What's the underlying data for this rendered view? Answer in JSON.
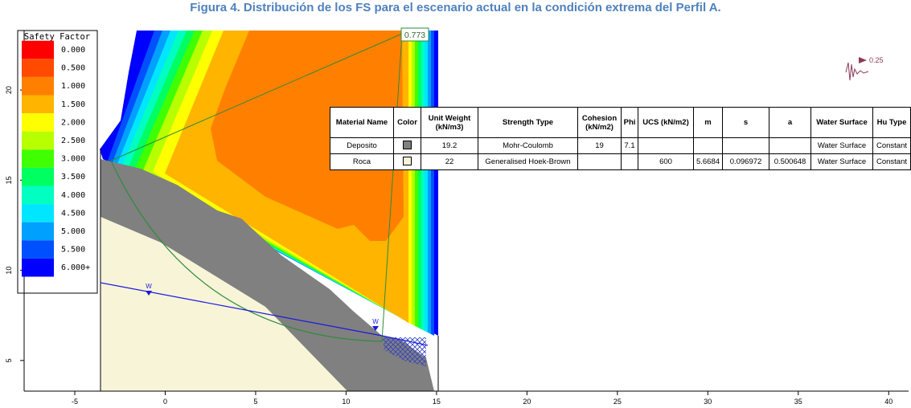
{
  "caption": "Figura 4. Distribución de los FS para el escenario actual en la condición extrema del Perfil A.",
  "legend": {
    "title": "Safety Factor",
    "items": [
      {
        "label": "0.000",
        "color": "#ff0000"
      },
      {
        "label": "0.500",
        "color": "#ff4a00"
      },
      {
        "label": "1.000",
        "color": "#ff8000"
      },
      {
        "label": "1.500",
        "color": "#ffb400"
      },
      {
        "label": "2.000",
        "color": "#ffff00"
      },
      {
        "label": "2.500",
        "color": "#b8ff00"
      },
      {
        "label": "3.000",
        "color": "#40ff00"
      },
      {
        "label": "3.500",
        "color": "#00ff60"
      },
      {
        "label": "4.000",
        "color": "#00ffc0"
      },
      {
        "label": "4.500",
        "color": "#00e6ff"
      },
      {
        "label": "5.000",
        "color": "#00a0ff"
      },
      {
        "label": "5.500",
        "color": "#0050ff"
      },
      {
        "label": "6.000+",
        "color": "#0000ff"
      }
    ]
  },
  "axes": {
    "xlim": [
      -7.8,
      41.1
    ],
    "xticks": [
      -5,
      0,
      5,
      10,
      15,
      20,
      25,
      30,
      35,
      40
    ],
    "ylim": [
      3.3,
      23.3
    ],
    "yticks": [
      5,
      10,
      15,
      20
    ]
  },
  "slip_surface": {
    "factor_label": "0.773"
  },
  "seismic_load": "0.25",
  "water_markers": [
    "W",
    "W"
  ],
  "table": {
    "header": [
      "Material Name",
      "Color",
      "Unit Weight (kN/m3)",
      "Strength Type",
      "Cohesion (kN/m2)",
      "Phi",
      "UCS (kN/m2)",
      "m",
      "s",
      "a",
      "Water Surface",
      "Hu Type"
    ],
    "rows": [
      [
        "Deposito",
        "#808080",
        "19.2",
        "Mohr-Coulomb",
        "19",
        "7.1",
        null,
        null,
        null,
        null,
        "Water Surface",
        "Constant"
      ],
      [
        "Roca",
        "#f8f4d8",
        "22",
        "Generalised Hoek-Brown",
        null,
        null,
        "600",
        "5.6684",
        "0.096972",
        "0.500648",
        "Water Surface",
        "Constant"
      ]
    ]
  }
}
